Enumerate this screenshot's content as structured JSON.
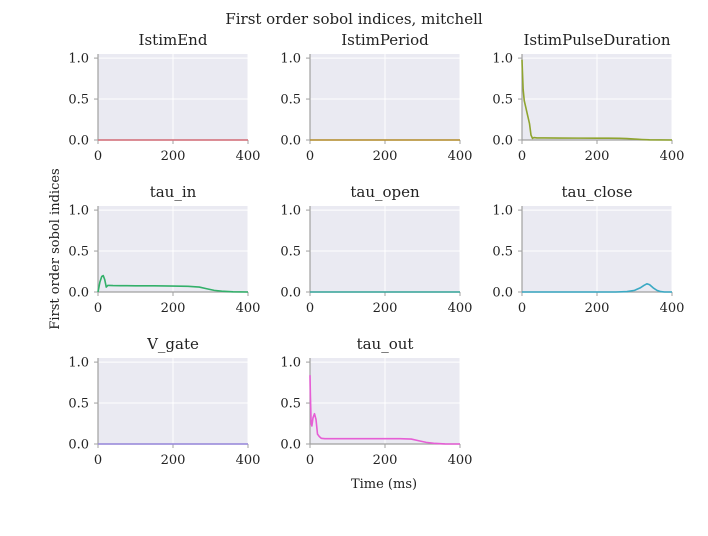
{
  "chart_data": {
    "type": "line",
    "title": "First order sobol indices, mitchell",
    "xlabel": "Time (ms)",
    "ylabel": "First order sobol indices",
    "xlim": [
      0,
      400
    ],
    "ylim": [
      0,
      1.05
    ],
    "xticks": [
      0,
      200,
      400
    ],
    "yticks": [
      0.0,
      0.5,
      1.0
    ],
    "xtick_labels": [
      "0",
      "200",
      "400"
    ],
    "ytick_labels": [
      "0.0",
      "0.5",
      "1.0"
    ],
    "grid": true,
    "background": "#eaeaf2",
    "panels": [
      {
        "title": "IstimEnd",
        "color": "#d9707c",
        "x": [
          0,
          400
        ],
        "y": [
          0.0,
          0.0
        ]
      },
      {
        "title": "IstimPeriod",
        "color": "#b8902e",
        "x": [
          0,
          400
        ],
        "y": [
          0.0,
          0.0
        ]
      },
      {
        "title": "IstimPulseDuration",
        "color": "#8fa42f",
        "x": [
          0,
          1,
          3,
          6,
          10,
          15,
          20,
          24,
          28,
          32,
          40,
          60,
          100,
          150,
          200,
          230,
          260,
          280,
          300,
          320,
          340,
          400
        ],
        "y": [
          0.98,
          0.85,
          0.62,
          0.48,
          0.4,
          0.3,
          0.2,
          0.06,
          0.02,
          0.03,
          0.025,
          0.025,
          0.024,
          0.023,
          0.022,
          0.022,
          0.02,
          0.017,
          0.012,
          0.006,
          0.002,
          0.0
        ]
      },
      {
        "title": "tau_in",
        "color": "#33b06a",
        "x": [
          0,
          5,
          10,
          14,
          18,
          22,
          26,
          30,
          40,
          60,
          100,
          150,
          200,
          240,
          270,
          290,
          310,
          330,
          360,
          400
        ],
        "y": [
          0.0,
          0.12,
          0.19,
          0.2,
          0.15,
          0.06,
          0.08,
          0.08,
          0.078,
          0.077,
          0.076,
          0.075,
          0.073,
          0.07,
          0.06,
          0.04,
          0.02,
          0.01,
          0.002,
          0.0
        ]
      },
      {
        "title": "tau_open",
        "color": "#38a89d",
        "x": [
          0,
          400
        ],
        "y": [
          0.0,
          0.0
        ]
      },
      {
        "title": "tau_close",
        "color": "#3aa9c4",
        "x": [
          0,
          250,
          280,
          300,
          315,
          325,
          333,
          340,
          350,
          360,
          370,
          380,
          400
        ],
        "y": [
          0.0,
          0.0,
          0.005,
          0.02,
          0.05,
          0.08,
          0.1,
          0.09,
          0.05,
          0.02,
          0.005,
          0.0,
          0.0
        ]
      },
      {
        "title": "V_gate",
        "color": "#9b8ce0",
        "x": [
          0,
          400
        ],
        "y": [
          0.0,
          0.0
        ]
      },
      {
        "title": "tau_out",
        "color": "#e65ed5",
        "x": [
          0,
          1,
          3,
          5,
          8,
          12,
          16,
          20,
          25,
          30,
          40,
          60,
          100,
          150,
          200,
          240,
          270,
          290,
          310,
          330,
          360,
          400
        ],
        "y": [
          0.84,
          0.6,
          0.25,
          0.22,
          0.32,
          0.37,
          0.3,
          0.12,
          0.09,
          0.07,
          0.065,
          0.065,
          0.065,
          0.065,
          0.065,
          0.065,
          0.06,
          0.04,
          0.02,
          0.008,
          0.001,
          0.0
        ]
      }
    ]
  }
}
